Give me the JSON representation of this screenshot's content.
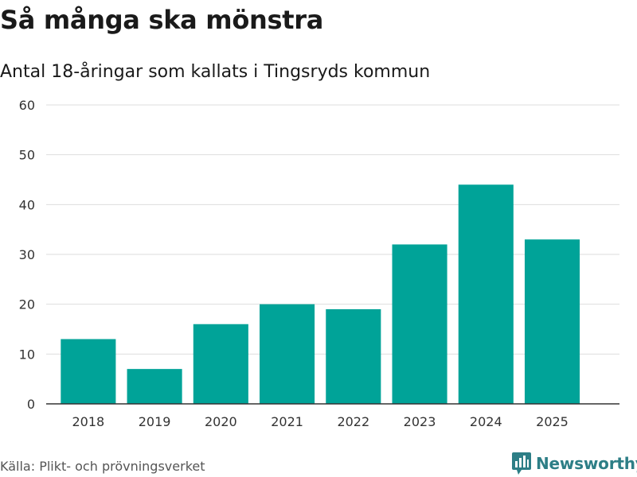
{
  "header": {
    "title": "Så många ska mönstra",
    "subtitle": "Antal 18-åringar som kallats i Tingsryds kommun"
  },
  "footer": {
    "source": "Källa: Plikt- och prövningsverket",
    "brand": "Newsworthy",
    "brand_icon": "bar-chart-speech-bubble-icon"
  },
  "colors": {
    "bar": "#00a398",
    "grid": "#dddddd",
    "axis": "#333333",
    "brand": "#2d7e86"
  },
  "chart_data": {
    "type": "bar",
    "title": "Så många ska mönstra",
    "subtitle": "Antal 18-åringar som kallats i Tingsryds kommun",
    "categories": [
      "2018",
      "2019",
      "2020",
      "2021",
      "2022",
      "2023",
      "2024",
      "2025"
    ],
    "values": [
      13,
      7,
      16,
      20,
      19,
      32,
      44,
      33
    ],
    "ylim": [
      0,
      60
    ],
    "yticks": [
      0,
      10,
      20,
      30,
      40,
      50,
      60
    ],
    "xlabel": "",
    "ylabel": "",
    "grid": true
  }
}
